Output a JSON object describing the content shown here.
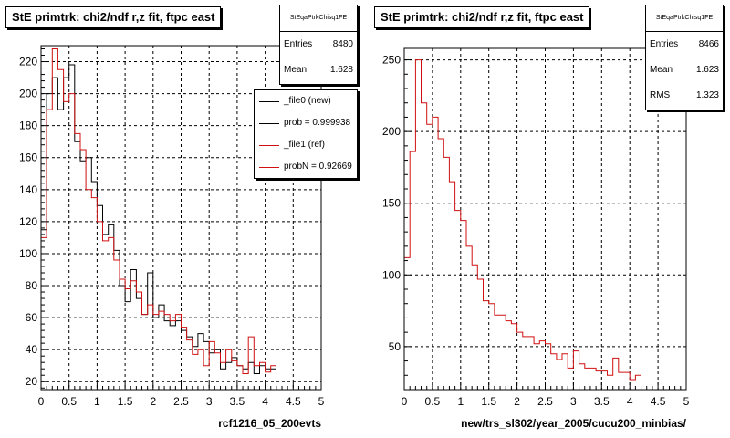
{
  "colors": {
    "new": "#000000",
    "ref": "#d01010",
    "grid": "#000000",
    "frame_shadow": "#000000"
  },
  "footer_text": "",
  "chart_data": [
    {
      "type": "line",
      "title": "StE primtrk: chi2/ndf r,z fit, ftpc east",
      "xlabel": "rcf1216_05_200evts",
      "ylabel": "",
      "xlim": [
        0,
        5
      ],
      "ylim": [
        15,
        230
      ],
      "xticks": [
        "0",
        "0.5",
        "1",
        "1.5",
        "2",
        "2.5",
        "3",
        "3.5",
        "4",
        "4.5",
        "5"
      ],
      "yticks": [
        "20",
        "40",
        "60",
        "80",
        "100",
        "120",
        "140",
        "160",
        "180",
        "200",
        "220"
      ],
      "grid": true,
      "stats": {
        "name": "StEqaPtrkChisq1FE",
        "entries_label": "Entries",
        "entries": "8480",
        "mean_label": "Mean",
        "mean": "1.628"
      },
      "legend": {
        "placement": "top-right",
        "entries": [
          {
            "label": "_file0 (new)",
            "color": "#000000"
          },
          {
            "label": "prob = 0.999938",
            "color": "#000000"
          },
          {
            "label": "_file1 (ref)",
            "color": "#d01010"
          },
          {
            "label": "probN = 0.92669",
            "color": "#d01010"
          }
        ]
      },
      "bin_width": 0.1,
      "series": [
        {
          "name": "_file0 (new)",
          "color": "#000000",
          "values": [
            115,
            200,
            210,
            190,
            210,
            218,
            170,
            158,
            160,
            145,
            130,
            112,
            118,
            102,
            80,
            70,
            90,
            72,
            62,
            88,
            60,
            68,
            58,
            55,
            58,
            52,
            48,
            42,
            50,
            45,
            38,
            40,
            28,
            32,
            35,
            30,
            28,
            32,
            25,
            30,
            28,
            28
          ]
        },
        {
          "name": "_file1 (ref)",
          "color": "#d01010",
          "values": [
            110,
            190,
            228,
            215,
            195,
            200,
            175,
            165,
            140,
            135,
            120,
            108,
            110,
            96,
            84,
            78,
            83,
            76,
            62,
            68,
            62,
            64,
            62,
            58,
            62,
            54,
            46,
            37,
            40,
            30,
            45,
            38,
            32,
            40,
            33,
            30,
            25,
            48,
            30,
            32,
            26,
            30
          ]
        }
      ]
    },
    {
      "type": "line",
      "title": "StE primtrk: chi2/ndf r,z fit, ftpc east",
      "xlabel": "new/trs_sl302/year_2005/cucu200_minbias/",
      "ylabel": "",
      "xlim": [
        0,
        5
      ],
      "ylim": [
        20,
        258
      ],
      "xticks": [
        "0",
        "0.5",
        "1",
        "1.5",
        "2",
        "2.5",
        "3",
        "3.5",
        "4",
        "4.5",
        "5"
      ],
      "yticks": [
        "50",
        "100",
        "150",
        "200",
        "250"
      ],
      "grid": true,
      "stats": {
        "name": "StEqaPtrkChisq1FE",
        "entries_label": "Entries",
        "entries": "8466",
        "mean_label": "Mean",
        "mean": "1.623",
        "rms_label": "RMS",
        "rms": "1.323"
      },
      "bin_width": 0.1,
      "series": [
        {
          "name": "ref",
          "color": "#d01010",
          "values": [
            112,
            186,
            250,
            220,
            205,
            210,
            195,
            182,
            165,
            145,
            138,
            120,
            107,
            97,
            82,
            80,
            72,
            72,
            68,
            66,
            60,
            57,
            57,
            52,
            54,
            52,
            45,
            41,
            45,
            35,
            47,
            38,
            35,
            35,
            33,
            33,
            30,
            42,
            32,
            32,
            27,
            30
          ]
        }
      ]
    }
  ]
}
